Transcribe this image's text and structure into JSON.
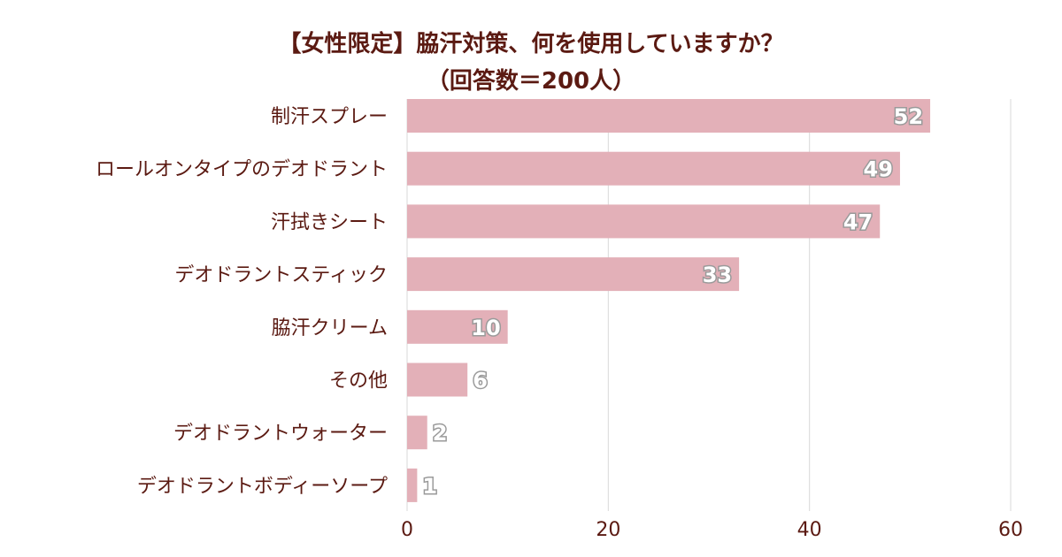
{
  "chart_data": {
    "type": "bar",
    "orientation": "horizontal",
    "title": "【女性限定】脇汗対策、何を使用していますか？",
    "subtitle": "（回答数＝200人）",
    "categories": [
      "制汗スプレー",
      "ロールオンタイプのデオドラント",
      "汗拭きシート",
      "デオドラントスティック",
      "脇汗クリーム",
      "その他",
      "デオドラントウォーター",
      "デオドラントボディーソープ"
    ],
    "values": [
      52,
      49,
      47,
      33,
      10,
      6,
      2,
      1
    ],
    "xlim": [
      0,
      60
    ],
    "xticks": [
      0,
      20,
      40,
      60
    ],
    "xlabel": "",
    "ylabel": "",
    "grid": true,
    "bar_color": "#e3b0b8",
    "text_color": "#5b1a12"
  }
}
